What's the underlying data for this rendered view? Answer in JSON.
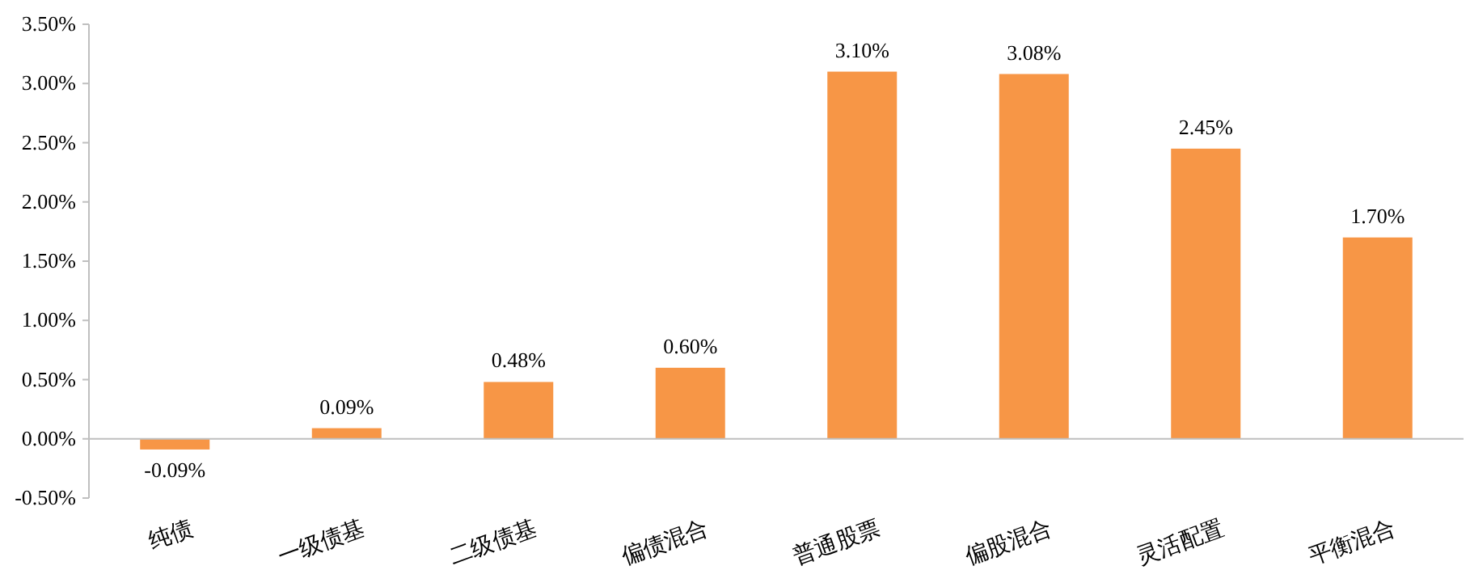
{
  "chart_data": {
    "type": "bar",
    "categories": [
      "纯债",
      "一级债基",
      "二级债基",
      "偏债混合",
      "普通股票",
      "偏股混合",
      "灵活配置",
      "平衡混合"
    ],
    "values": [
      -0.09,
      0.09,
      0.48,
      0.6,
      3.1,
      3.08,
      2.45,
      1.7
    ],
    "value_labels": [
      "-0.09%",
      "0.09%",
      "0.48%",
      "0.60%",
      "3.10%",
      "3.08%",
      "2.45%",
      "1.70%"
    ],
    "color": "#f79646",
    "ylim": [
      -0.5,
      3.5
    ],
    "yticks": [
      {
        "value": -0.5,
        "label": "-0.50%"
      },
      {
        "value": 0,
        "label": "0.00%"
      },
      {
        "value": 0.5,
        "label": "0.50%"
      },
      {
        "value": 1,
        "label": "1.00%"
      },
      {
        "value": 1.5,
        "label": "1.50%"
      },
      {
        "value": 2,
        "label": "2.00%"
      },
      {
        "value": 2.5,
        "label": "2.50%"
      },
      {
        "value": 3,
        "label": "3.00%"
      },
      {
        "value": 3.5,
        "label": "3.50%"
      }
    ],
    "tick_labels": "xy"
  }
}
